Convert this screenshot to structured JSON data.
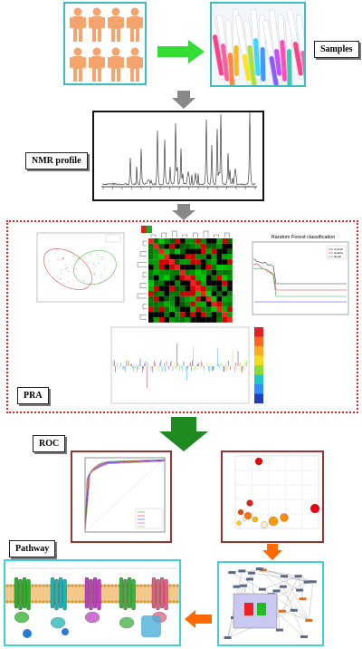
{
  "labels": {
    "samples": "Samples",
    "nmr": "NMR profile",
    "pra": "PRA",
    "roc": "ROC",
    "pathway": "Pathway"
  },
  "rf_chart": {
    "title": "Random Forest classification",
    "legend": [
      "Overall",
      "Healthy",
      "Renal"
    ]
  },
  "colors": {
    "person": "#f5a46d",
    "teal_border": "#3fbcc0",
    "green_arrow": "#33dd33",
    "gray_arrow": "#888888",
    "pra_border": "#ee2222",
    "dark_green_arrow": "#1f8a1f",
    "roc_border": "#993333",
    "orange_arrow": "#ff6a00"
  }
}
